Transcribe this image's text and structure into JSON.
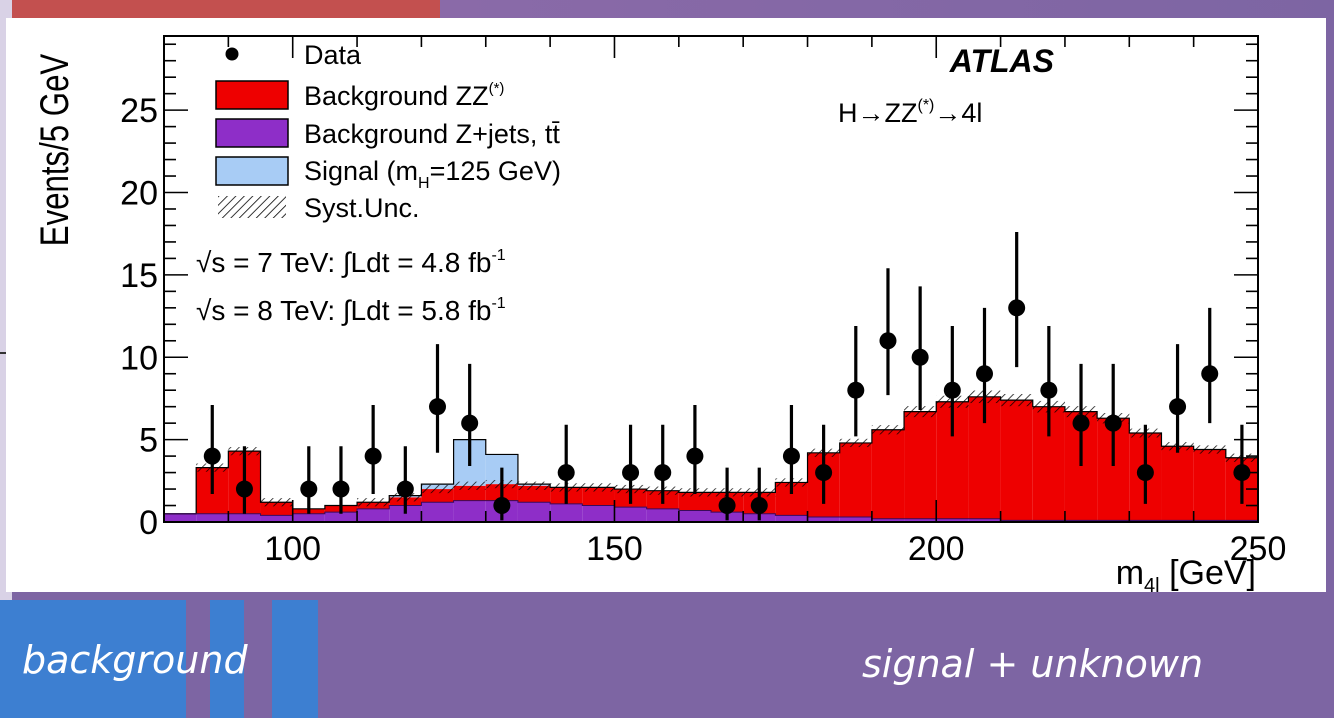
{
  "captions": {
    "left": "background",
    "right": "signal + unknown"
  },
  "colors": {
    "zz_background": "#ee0000",
    "zjets_background": "#8e2ec8",
    "signal": "#a8ccf5",
    "data": "#000000",
    "slide_purple": "#7d65a3",
    "slide_blue": "#3d7fd1"
  },
  "chart_data": {
    "type": "histogram",
    "experiment": "ATLAS",
    "process": "H→ZZ(*)→4l",
    "xlabel": "m4l [GeV]",
    "ylabel": "Events/5 GeV",
    "xlim": [
      80,
      250
    ],
    "ylim": [
      0,
      29.5
    ],
    "x_ticks": [
      100,
      150,
      200,
      250
    ],
    "y_ticks": [
      0,
      5,
      10,
      15,
      20,
      25
    ],
    "legend_position": "top-left",
    "legend": [
      "Data",
      "Background ZZ(*)",
      "Background Z+jets, tt̄",
      "Signal (mH=125 GeV)",
      "Syst.Unc."
    ],
    "lumi_labels": [
      "√s = 7 TeV: ∫Ldt = 4.8 fb-1",
      "√s = 8 TeV: ∫Ldt = 5.8 fb-1"
    ],
    "bin_edges": [
      80,
      85,
      90,
      95,
      100,
      105,
      110,
      115,
      120,
      125,
      130,
      135,
      140,
      145,
      150,
      155,
      160,
      165,
      170,
      175,
      180,
      185,
      190,
      195,
      200,
      205,
      210,
      215,
      220,
      225,
      230,
      235,
      240,
      245,
      250
    ],
    "series": [
      {
        "name": "Background Z+jets, tt̄",
        "values": [
          0.5,
          0.5,
          0.5,
          0.4,
          0.5,
          0.6,
          0.8,
          1.0,
          1.2,
          1.3,
          1.3,
          1.2,
          1.1,
          1.0,
          0.9,
          0.8,
          0.7,
          0.6,
          0.5,
          0.4,
          0.3,
          0.3,
          0.2,
          0.2,
          0.2,
          0.2,
          0.1,
          0.1,
          0.1,
          0.1,
          0.1,
          0.1,
          0.1,
          0.1
        ]
      },
      {
        "name": "Background ZZ(*)",
        "values": [
          0.0,
          2.8,
          3.8,
          0.8,
          0.3,
          0.4,
          0.4,
          0.5,
          0.8,
          0.9,
          1.0,
          1.0,
          1.0,
          1.1,
          1.1,
          1.1,
          1.1,
          1.2,
          1.3,
          2.0,
          3.9,
          4.5,
          5.4,
          6.5,
          7.1,
          7.4,
          7.3,
          6.9,
          6.6,
          6.2,
          5.3,
          4.5,
          4.3,
          3.8
        ]
      },
      {
        "name": "Signal (mH=125 GeV)",
        "values": [
          0,
          0,
          0,
          0,
          0,
          0,
          0,
          0.1,
          0.3,
          2.8,
          1.8,
          0.1,
          0,
          0,
          0,
          0,
          0,
          0,
          0,
          0,
          0,
          0,
          0,
          0,
          0,
          0,
          0,
          0,
          0,
          0,
          0,
          0,
          0,
          0
        ]
      }
    ],
    "data_points": {
      "x": [
        87.5,
        92.5,
        102.5,
        107.5,
        112.5,
        117.5,
        122.5,
        127.5,
        132.5,
        142.5,
        152.5,
        157.5,
        162.5,
        167.5,
        172.5,
        177.5,
        182.5,
        187.5,
        192.5,
        197.5,
        202.5,
        207.5,
        212.5,
        217.5,
        222.5,
        227.5,
        232.5,
        237.5,
        242.5,
        247.5
      ],
      "y": [
        4,
        2,
        2,
        2,
        4,
        2,
        7,
        6,
        1,
        3,
        3,
        3,
        4,
        1,
        1,
        4,
        3,
        8,
        11,
        10,
        8,
        9,
        13,
        8,
        6,
        6,
        3,
        7,
        9,
        3
      ],
      "err_low": [
        2.3,
        1.5,
        1.5,
        1.5,
        2.3,
        1.5,
        2.8,
        2.6,
        0.9,
        1.9,
        1.9,
        1.9,
        2.3,
        0.9,
        0.9,
        2.3,
        1.9,
        2.8,
        3.3,
        3.2,
        2.8,
        3.0,
        3.6,
        2.8,
        2.6,
        2.6,
        1.9,
        2.8,
        3.0,
        1.9
      ],
      "err_high": [
        3.1,
        2.6,
        2.6,
        2.6,
        3.1,
        2.6,
        3.8,
        3.6,
        2.3,
        2.9,
        2.9,
        2.9,
        3.1,
        2.3,
        2.3,
        3.1,
        2.9,
        3.9,
        4.4,
        4.3,
        3.9,
        4.0,
        4.6,
        3.9,
        3.6,
        3.6,
        2.9,
        3.8,
        4.0,
        2.9
      ]
    }
  }
}
